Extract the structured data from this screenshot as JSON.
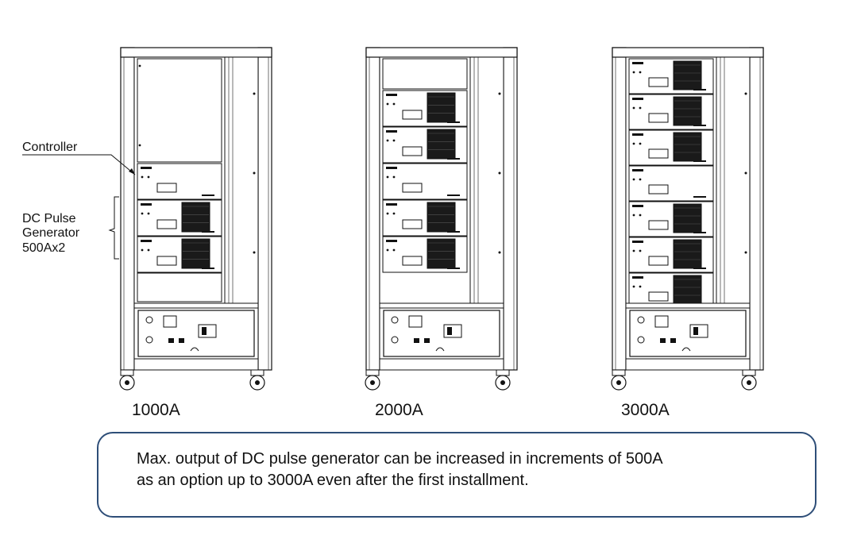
{
  "labels": {
    "controller": "Controller",
    "dc_pulse_line1": "DC Pulse",
    "dc_pulse_line2": "Generator",
    "dc_pulse_line3": "500Ax2"
  },
  "cabinets": [
    {
      "caption": "1000A",
      "units": [
        "blank",
        "controller",
        "generator",
        "generator"
      ]
    },
    {
      "caption": "2000A",
      "units": [
        "generator",
        "generator",
        "controller",
        "generator",
        "generator"
      ]
    },
    {
      "caption": "3000A",
      "units": [
        "generator",
        "generator",
        "generator",
        "controller",
        "generator",
        "generator",
        "generator"
      ]
    }
  ],
  "note": {
    "line1": "Max. output of DC pulse generator can be increased in increments of 500A",
    "line2": "as an option up to 3000A even after the first installment."
  },
  "colors": {
    "line": "#111111",
    "panel": "#1a1a1a",
    "border": "#2e4e78"
  }
}
